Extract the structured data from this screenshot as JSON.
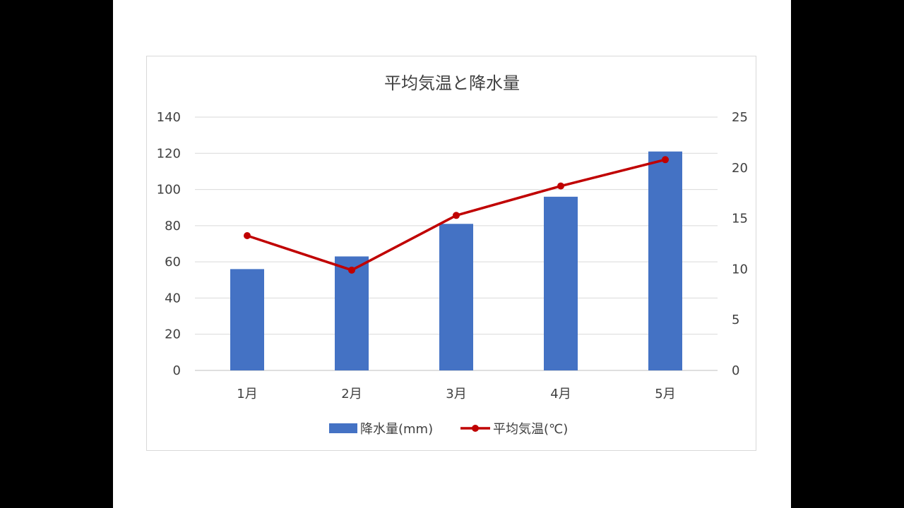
{
  "chart_data": {
    "type": "bar",
    "title": "平均気温と降水量",
    "categories": [
      "1月",
      "2月",
      "3月",
      "4月",
      "5月"
    ],
    "series": [
      {
        "name": "降水量(mm)",
        "type": "bar",
        "axis": "left",
        "color": "#4472C4",
        "values": [
          56,
          63,
          81,
          96,
          121
        ]
      },
      {
        "name": "平均気温(℃)",
        "type": "line",
        "axis": "right",
        "color": "#C00000",
        "values": [
          13.3,
          9.9,
          15.3,
          18.2,
          20.8
        ]
      }
    ],
    "y_left": {
      "min": 0,
      "max": 140,
      "ticks": [
        0,
        20,
        40,
        60,
        80,
        100,
        120,
        140
      ]
    },
    "y_right": {
      "min": 0,
      "max": 25,
      "ticks": [
        0,
        5,
        10,
        15,
        20,
        25
      ]
    },
    "grid": true,
    "legend_position": "bottom"
  }
}
